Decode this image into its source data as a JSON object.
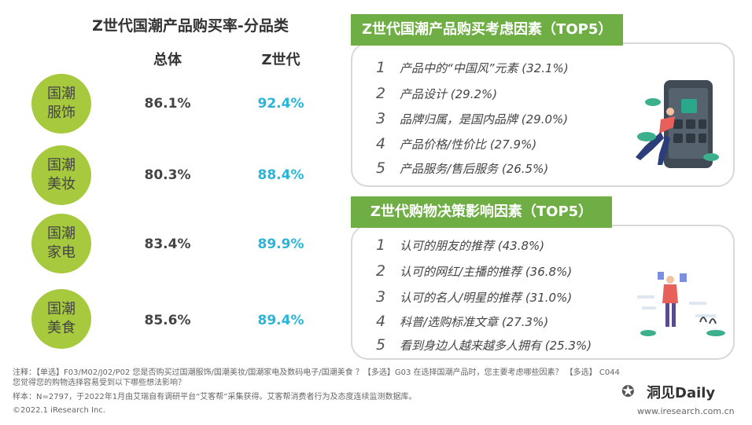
{
  "left": {
    "title": "Z世代国潮产品购买率-分品类",
    "header_total": "总体",
    "header_z": "Z世代",
    "rows": [
      {
        "line1": "国潮",
        "line2": "服饰",
        "total": "86.1%",
        "z": "92.4%"
      },
      {
        "line1": "国潮",
        "line2": "美妆",
        "total": "80.3%",
        "z": "88.4%"
      },
      {
        "line1": "国潮",
        "line2": "家电",
        "total": "83.4%",
        "z": "89.9%"
      },
      {
        "line1": "国潮",
        "line2": "美食",
        "total": "85.6%",
        "z": "89.4%"
      }
    ]
  },
  "panel1": {
    "banner": "Z世代国潮产品购买考虑因素（TOP5）",
    "items": [
      {
        "num": "1",
        "text": "产品中的“中国风”元素 (32.1%)"
      },
      {
        "num": "2",
        "text": "产品设计 (29.2%)"
      },
      {
        "num": "3",
        "text": "品牌归属，是国内品牌 (29.0%)"
      },
      {
        "num": "4",
        "text": "产品价格/性价比 (27.9%)"
      },
      {
        "num": "5",
        "text": "产品服务/售后服务 (26.5%)"
      }
    ]
  },
  "panel2": {
    "banner": "Z世代购物决策影响因素（TOP5）",
    "items": [
      {
        "num": "1",
        "text": "认可的朋友的推荐 (43.8%)"
      },
      {
        "num": "2",
        "text": "认可的网红/主播的推荐 (36.8%)"
      },
      {
        "num": "3",
        "text": "认可的名人/明星的推荐 (31.0%)"
      },
      {
        "num": "4",
        "text": "科普/选购标准文章 (27.3%)"
      },
      {
        "num": "5",
        "text": "看到身边人越来越多人拥有 (25.3%)"
      }
    ]
  },
  "footer": {
    "note1": "注释：【单选】F03/M02/J02/P02 您是否购买过国潮服饰/国潮美妆/国潮家电及数码电子/国潮美食 ？【多选】G03 在选择国潮产品时，您主要考虑哪些因素？ 【多选】 C044",
    "note2": "您觉得您的购物选择容易受到以下哪些想法影响？",
    "sample": "样本：N=2797，于2022年1月由艾瑞自有调研平台“艾客帮”采集获得。艾客帮消费者行为及态度连续监测数据库。",
    "copyright": "©2022.1 iResearch Inc.",
    "logo": "洞见Daily",
    "website": "www.iresearch.com.cn"
  },
  "colors": {
    "green": "#6fae45",
    "circle": "#a6c93d",
    "cyan": "#29b5d9"
  }
}
